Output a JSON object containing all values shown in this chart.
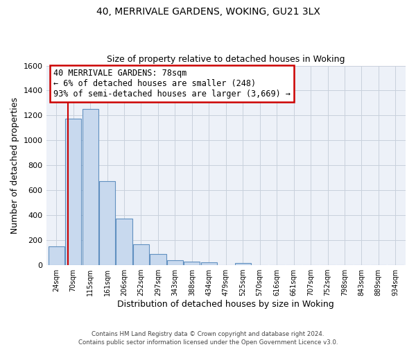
{
  "title_line1": "40, MERRIVALE GARDENS, WOKING, GU21 3LX",
  "title_line2": "Size of property relative to detached houses in Woking",
  "xlabel": "Distribution of detached houses by size in Woking",
  "ylabel": "Number of detached properties",
  "bar_labels": [
    "24sqm",
    "70sqm",
    "115sqm",
    "161sqm",
    "206sqm",
    "252sqm",
    "297sqm",
    "343sqm",
    "388sqm",
    "434sqm",
    "479sqm",
    "525sqm",
    "570sqm",
    "616sqm",
    "661sqm",
    "707sqm",
    "752sqm",
    "798sqm",
    "843sqm",
    "889sqm",
    "934sqm"
  ],
  "bar_values": [
    150,
    1175,
    1255,
    675,
    375,
    170,
    88,
    38,
    28,
    20,
    0,
    18,
    0,
    0,
    0,
    0,
    0,
    0,
    0,
    0,
    0
  ],
  "bar_color": "#c8d9ee",
  "bar_edge_color": "#6090c0",
  "ylim": [
    0,
    1600
  ],
  "yticks": [
    0,
    200,
    400,
    600,
    800,
    1000,
    1200,
    1400,
    1600
  ],
  "property_line_color": "#cc0000",
  "annotation_title": "40 MERRIVALE GARDENS: 78sqm",
  "annotation_line1": "← 6% of detached houses are smaller (248)",
  "annotation_line2": "93% of semi-detached houses are larger (3,669) →",
  "annotation_box_color": "#ffffff",
  "annotation_box_edge": "#cc0000",
  "grid_color": "#c8d0dc",
  "bg_color": "#edf1f8",
  "footer_line1": "Contains HM Land Registry data © Crown copyright and database right 2024.",
  "footer_line2": "Contains public sector information licensed under the Open Government Licence v3.0."
}
